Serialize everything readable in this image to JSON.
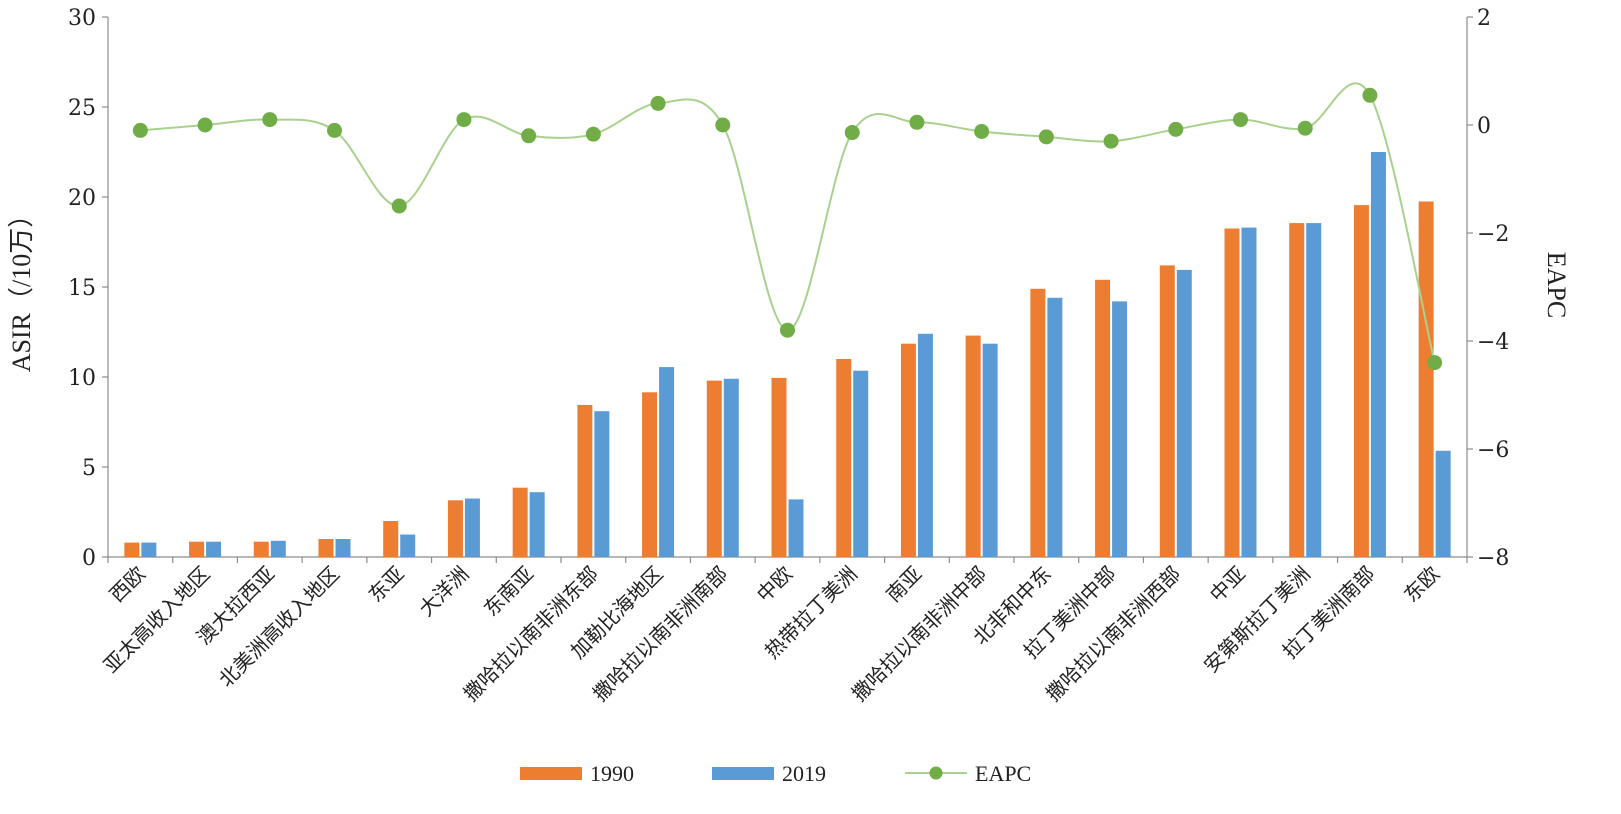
{
  "chart_data": {
    "type": "bar",
    "categories": [
      "西欧",
      "亚太高收入地区",
      "澳大拉西亚",
      "北美洲高收入地区",
      "东亚",
      "大洋洲",
      "东南亚",
      "撒哈拉以南非洲东部",
      "加勒比海地区",
      "撒哈拉以南非洲南部",
      "中欧",
      "热带拉丁美洲",
      "南亚",
      "撒哈拉以南非洲中部",
      "北非和中东",
      "拉丁美洲中部",
      "撒哈拉以南非洲西部",
      "中亚",
      "安第斯拉丁美洲",
      "拉丁美洲南部",
      "东欧"
    ],
    "series": [
      {
        "name": "1990",
        "type": "bar",
        "axis": "left",
        "color": "#ED7D31",
        "values": [
          0.8,
          0.85,
          0.85,
          1.0,
          2.0,
          3.15,
          3.85,
          8.45,
          9.15,
          9.8,
          9.95,
          11.0,
          11.85,
          12.3,
          14.9,
          15.4,
          16.2,
          18.25,
          18.55,
          19.55,
          19.75
        ]
      },
      {
        "name": "2019",
        "type": "bar",
        "axis": "left",
        "color": "#5B9BD5",
        "values": [
          0.8,
          0.85,
          0.9,
          1.0,
          1.25,
          3.25,
          3.6,
          8.1,
          10.55,
          9.9,
          3.2,
          10.35,
          12.4,
          11.85,
          14.4,
          14.2,
          15.95,
          18.3,
          18.55,
          22.5,
          5.9
        ]
      },
      {
        "name": "EAPC",
        "type": "line",
        "axis": "right",
        "color": "#70AD47",
        "line_color": "#A9D18E",
        "values": [
          -0.1,
          0.0,
          0.1,
          -0.1,
          -1.5,
          0.1,
          -0.2,
          -0.17,
          0.4,
          0.0,
          -3.8,
          -0.14,
          0.05,
          -0.12,
          -0.22,
          -0.3,
          -0.08,
          0.1,
          -0.06,
          0.55,
          -4.4
        ]
      }
    ],
    "ylabel_left": "ASIR（/10万）",
    "ylabel_right": "EAPC",
    "ylim_left": [
      0,
      30
    ],
    "yticks_left": [
      "0",
      "5",
      "10",
      "15",
      "20",
      "25",
      "30"
    ],
    "ylim_right": [
      -8,
      2
    ],
    "yticks_right": [
      "−8",
      "−6",
      "−4",
      "−2",
      "0",
      "2"
    ],
    "grid": false,
    "legend_position": "bottom"
  }
}
